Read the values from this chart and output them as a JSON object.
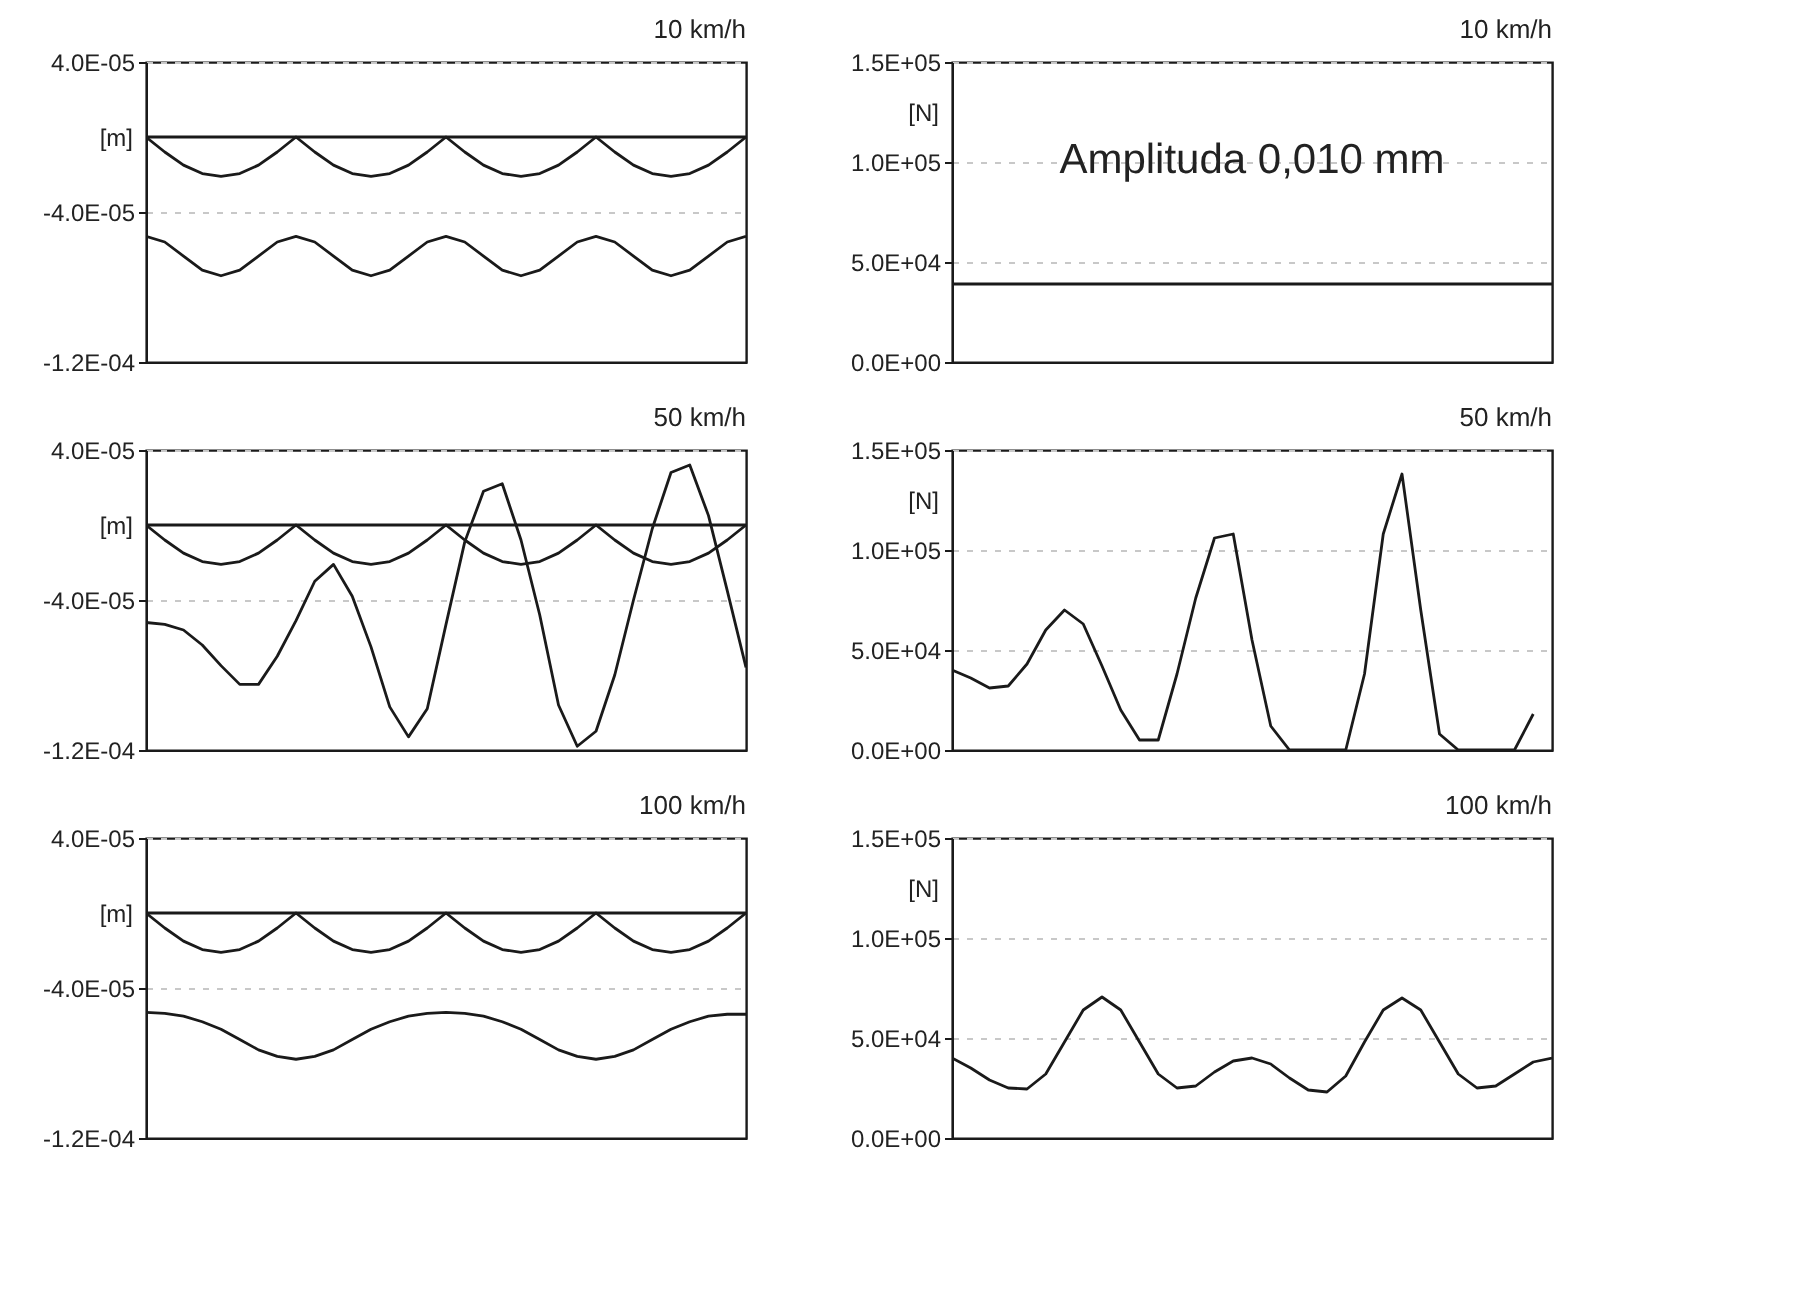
{
  "chart_data": [
    {
      "type": "line",
      "title": "10 km/h",
      "ylabel": "[m]",
      "ylim": [
        -0.00012,
        4e-05
      ],
      "tick_labels": "y",
      "grid": "y",
      "yticks": [
        {
          "value": 4e-05,
          "label": "4.0E-05"
        },
        {
          "value": -4e-05,
          "label": "-4.0E-05"
        },
        {
          "value": -0.00012,
          "label": "-1.2E-04"
        }
      ],
      "categories": [
        null,
        null,
        null,
        null,
        null,
        null,
        null,
        null,
        null,
        null,
        null,
        null,
        null,
        null,
        null,
        null,
        null,
        null,
        null,
        null,
        null,
        null,
        null,
        null,
        null,
        null,
        null,
        null,
        null,
        null,
        null,
        null,
        null
      ],
      "series": [
        {
          "color": "#1a1a1a",
          "values": [
            0,
            0,
            0,
            0,
            0,
            0,
            0,
            0,
            0,
            0,
            0,
            0,
            0,
            0,
            0,
            0,
            0,
            0,
            0,
            0,
            0,
            0,
            0,
            0,
            0,
            0,
            0,
            0,
            0,
            0,
            0,
            0,
            0
          ]
        },
        {
          "color": "#1a1a1a",
          "values": [
            0,
            -8e-06,
            -1.5e-05,
            -1.95e-05,
            -2.1e-05,
            -1.95e-05,
            -1.5e-05,
            -8e-06,
            0,
            -8e-06,
            -1.5e-05,
            -1.95e-05,
            -2.1e-05,
            -1.95e-05,
            -1.5e-05,
            -8e-06,
            0,
            -8e-06,
            -1.5e-05,
            -1.95e-05,
            -2.1e-05,
            -1.95e-05,
            -1.5e-05,
            -8e-06,
            0,
            -8e-06,
            -1.5e-05,
            -1.95e-05,
            -2.1e-05,
            -1.95e-05,
            -1.5e-05,
            -8e-06,
            0
          ]
        },
        {
          "color": "#1a1a1a",
          "values": [
            -5.3e-05,
            -5.6e-05,
            -6.35e-05,
            -7.1e-05,
            -7.4e-05,
            -7.1e-05,
            -6.35e-05,
            -5.6e-05,
            -5.3e-05,
            -5.6e-05,
            -6.35e-05,
            -7.1e-05,
            -7.4e-05,
            -7.1e-05,
            -6.35e-05,
            -5.6e-05,
            -5.3e-05,
            -5.6e-05,
            -6.35e-05,
            -7.1e-05,
            -7.4e-05,
            -7.1e-05,
            -6.35e-05,
            -5.6e-05,
            -5.3e-05,
            -5.6e-05,
            -6.35e-05,
            -7.1e-05,
            -7.4e-05,
            -7.1e-05,
            -6.35e-05,
            -5.6e-05,
            -5.3e-05
          ]
        }
      ]
    },
    {
      "type": "line",
      "title": "10 km/h",
      "ylabel": "[N]",
      "ylim": [
        0,
        150000
      ],
      "tick_labels": "y",
      "grid": "y",
      "yticks": [
        {
          "value": 0,
          "label": "0.0E+00"
        },
        {
          "value": 50000,
          "label": "5.0E+04"
        },
        {
          "value": 100000,
          "label": "1.0E+05"
        },
        {
          "value": 150000,
          "label": "1.5E+05"
        }
      ],
      "annotations": [
        "Amplituda  0,010 mm"
      ],
      "categories": [
        null,
        null,
        null,
        null,
        null,
        null,
        null,
        null,
        null,
        null,
        null,
        null,
        null,
        null,
        null,
        null,
        null,
        null,
        null,
        null,
        null,
        null,
        null,
        null,
        null,
        null,
        null,
        null,
        null,
        null,
        null,
        null,
        null
      ],
      "series": [
        {
          "color": "#1a1a1a",
          "values": [
            39000,
            39000,
            39000,
            39000,
            39000,
            39000,
            39000,
            39000,
            39000,
            39000,
            39000,
            39000,
            39000,
            39000,
            39000,
            39000,
            39000,
            39000,
            39000,
            39000,
            39000,
            39000,
            39000,
            39000,
            39000,
            39000,
            39000,
            39000,
            39000,
            39000,
            39000,
            39000,
            39000
          ]
        }
      ]
    },
    {
      "type": "line",
      "title": "50 km/h",
      "ylabel": "[m]",
      "ylim": [
        -0.00012,
        4e-05
      ],
      "tick_labels": "y",
      "grid": "y",
      "yticks": [
        {
          "value": 4e-05,
          "label": "4.0E-05"
        },
        {
          "value": -4e-05,
          "label": "-4.0E-05"
        },
        {
          "value": -0.00012,
          "label": "-1.2E-04"
        }
      ],
      "categories": [
        null,
        null,
        null,
        null,
        null,
        null,
        null,
        null,
        null,
        null,
        null,
        null,
        null,
        null,
        null,
        null,
        null,
        null,
        null,
        null,
        null,
        null,
        null,
        null,
        null,
        null,
        null,
        null,
        null,
        null,
        null,
        null,
        null
      ],
      "series": [
        {
          "color": "#1a1a1a",
          "values": [
            0,
            0,
            0,
            0,
            0,
            0,
            0,
            0,
            0,
            0,
            0,
            0,
            0,
            0,
            0,
            0,
            0,
            0,
            0,
            0,
            0,
            0,
            0,
            0,
            0,
            0,
            0,
            0,
            0,
            0,
            0,
            0,
            0
          ]
        },
        {
          "color": "#1a1a1a",
          "values": [
            0,
            -8e-06,
            -1.5e-05,
            -1.95e-05,
            -2.1e-05,
            -1.95e-05,
            -1.5e-05,
            -8e-06,
            0,
            -8e-06,
            -1.5e-05,
            -1.95e-05,
            -2.1e-05,
            -1.95e-05,
            -1.5e-05,
            -8e-06,
            0,
            -8e-06,
            -1.5e-05,
            -1.95e-05,
            -2.1e-05,
            -1.95e-05,
            -1.5e-05,
            -8e-06,
            0,
            -8e-06,
            -1.5e-05,
            -1.95e-05,
            -2.1e-05,
            -1.95e-05,
            -1.5e-05,
            -8e-06,
            0
          ]
        },
        {
          "color": "#1a1a1a",
          "values": [
            -5.2e-05,
            -5.3e-05,
            -5.6e-05,
            -6.4e-05,
            -7.5e-05,
            -8.5e-05,
            -8.5e-05,
            -7e-05,
            -5.1e-05,
            -3e-05,
            -2.1e-05,
            -3.8e-05,
            -6.5e-05,
            -9.7e-05,
            -0.000113,
            -9.8e-05,
            -5.3e-05,
            -9e-06,
            1.8e-05,
            2.2e-05,
            -8e-06,
            -4.8e-05,
            -9.6e-05,
            -0.000118,
            -0.00011,
            -8e-05,
            -4e-05,
            -2e-06,
            2.8e-05,
            3.2e-05,
            5e-06,
            -3.5e-05,
            -7.6e-05
          ]
        }
      ]
    },
    {
      "type": "line",
      "title": "50 km/h",
      "ylabel": "[N]",
      "ylim": [
        0,
        150000
      ],
      "tick_labels": "y",
      "grid": "y",
      "yticks": [
        {
          "value": 0,
          "label": "0.0E+00"
        },
        {
          "value": 50000,
          "label": "5.0E+04"
        },
        {
          "value": 100000,
          "label": "1.0E+05"
        },
        {
          "value": 150000,
          "label": "1.5E+05"
        }
      ],
      "categories": [
        null,
        null,
        null,
        null,
        null,
        null,
        null,
        null,
        null,
        null,
        null,
        null,
        null,
        null,
        null,
        null,
        null,
        null,
        null,
        null,
        null,
        null,
        null,
        null,
        null,
        null,
        null,
        null,
        null,
        null,
        null,
        null,
        null
      ],
      "series": [
        {
          "color": "#1a1a1a",
          "values": [
            40000,
            36000,
            31000,
            32000,
            43000,
            60000,
            70000,
            63000,
            42000,
            20000,
            5000,
            5000,
            38000,
            76000,
            106000,
            108000,
            55000,
            12000,
            0,
            0,
            0,
            0,
            38000,
            108000,
            138000,
            70000,
            8000,
            0,
            0,
            0,
            0,
            18000,
            null
          ]
        }
      ]
    },
    {
      "type": "line",
      "title": "100 km/h",
      "ylabel": "[m]",
      "ylim": [
        -0.00012,
        4e-05
      ],
      "tick_labels": "y",
      "grid": "y",
      "yticks": [
        {
          "value": 4e-05,
          "label": "4.0E-05"
        },
        {
          "value": -4e-05,
          "label": "-4.0E-05"
        },
        {
          "value": -0.00012,
          "label": "-1.2E-04"
        }
      ],
      "categories": [
        null,
        null,
        null,
        null,
        null,
        null,
        null,
        null,
        null,
        null,
        null,
        null,
        null,
        null,
        null,
        null,
        null,
        null,
        null,
        null,
        null,
        null,
        null,
        null,
        null,
        null,
        null,
        null,
        null,
        null,
        null,
        null,
        null
      ],
      "series": [
        {
          "color": "#1a1a1a",
          "values": [
            0,
            0,
            0,
            0,
            0,
            0,
            0,
            0,
            0,
            0,
            0,
            0,
            0,
            0,
            0,
            0,
            0,
            0,
            0,
            0,
            0,
            0,
            0,
            0,
            0,
            0,
            0,
            0,
            0,
            0,
            0,
            0,
            0
          ]
        },
        {
          "color": "#1a1a1a",
          "values": [
            0,
            -8e-06,
            -1.5e-05,
            -1.95e-05,
            -2.1e-05,
            -1.95e-05,
            -1.5e-05,
            -8e-06,
            0,
            -8e-06,
            -1.5e-05,
            -1.95e-05,
            -2.1e-05,
            -1.95e-05,
            -1.5e-05,
            -8e-06,
            0,
            -8e-06,
            -1.5e-05,
            -1.95e-05,
            -2.1e-05,
            -1.95e-05,
            -1.5e-05,
            -8e-06,
            0,
            -8e-06,
            -1.5e-05,
            -1.95e-05,
            -2.1e-05,
            -1.95e-05,
            -1.5e-05,
            -8e-06,
            0
          ]
        },
        {
          "color": "#1a1a1a",
          "values": [
            -5.3e-05,
            -5.35e-05,
            -5.5e-05,
            -5.8e-05,
            -6.2e-05,
            -6.75e-05,
            -7.3e-05,
            -7.65e-05,
            -7.8e-05,
            -7.65e-05,
            -7.3e-05,
            -6.75e-05,
            -6.2e-05,
            -5.8e-05,
            -5.5e-05,
            -5.35e-05,
            -5.3e-05,
            -5.35e-05,
            -5.5e-05,
            -5.8e-05,
            -6.2e-05,
            -6.75e-05,
            -7.3e-05,
            -7.65e-05,
            -7.8e-05,
            -7.65e-05,
            -7.3e-05,
            -6.75e-05,
            -6.2e-05,
            -5.8e-05,
            -5.5e-05,
            -5.4e-05,
            -5.4e-05
          ]
        }
      ]
    },
    {
      "type": "line",
      "title": "100 km/h",
      "ylabel": "[N]",
      "ylim": [
        0,
        150000
      ],
      "tick_labels": "y",
      "grid": "y",
      "yticks": [
        {
          "value": 0,
          "label": "0.0E+00"
        },
        {
          "value": 50000,
          "label": "5.0E+04"
        },
        {
          "value": 100000,
          "label": "1.0E+05"
        },
        {
          "value": 150000,
          "label": "1.5E+05"
        }
      ],
      "categories": [
        null,
        null,
        null,
        null,
        null,
        null,
        null,
        null,
        null,
        null,
        null,
        null,
        null,
        null,
        null,
        null,
        null,
        null,
        null,
        null,
        null,
        null,
        null,
        null,
        null,
        null,
        null,
        null,
        null,
        null,
        null,
        null,
        null
      ],
      "series": [
        {
          "color": "#1a1a1a",
          "values": [
            40000,
            35000,
            29000,
            25000,
            24500,
            32000,
            48000,
            64000,
            70500,
            64000,
            48000,
            32000,
            25000,
            26000,
            33000,
            38500,
            40000,
            37000,
            30000,
            24000,
            23000,
            31000,
            48000,
            64000,
            70000,
            64000,
            48000,
            32000,
            25000,
            26000,
            32000,
            38000,
            40000
          ]
        }
      ]
    }
  ]
}
